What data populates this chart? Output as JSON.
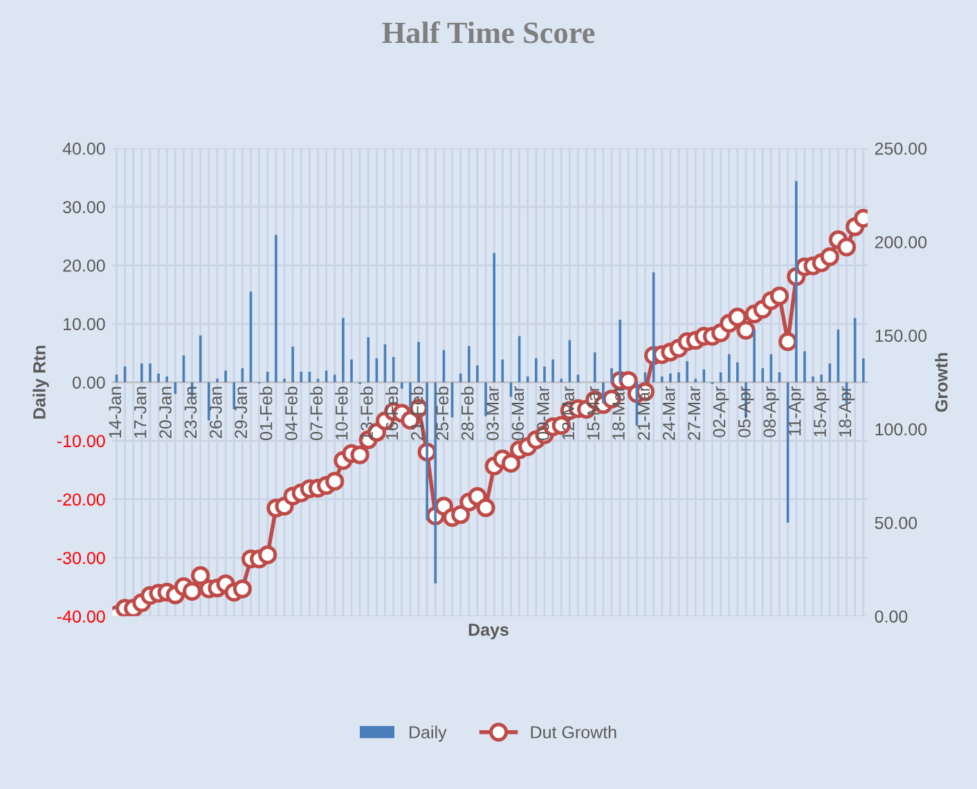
{
  "chart_data": {
    "type": "bar",
    "title": "Half Time Score",
    "xlabel": "Days",
    "ylabel": "Daily Rtn",
    "y2label": "Growth",
    "categories": [
      "14-Jan",
      null,
      null,
      "17-Jan",
      null,
      null,
      "20-Jan",
      null,
      null,
      "23-Jan",
      null,
      null,
      "26-Jan",
      null,
      null,
      "29-Jan",
      null,
      null,
      "01-Feb",
      null,
      null,
      "04-Feb",
      null,
      null,
      "07-Feb",
      null,
      null,
      "10-Feb",
      null,
      null,
      "13-Feb",
      null,
      null,
      "16-Feb",
      null,
      null,
      "21-Feb",
      null,
      null,
      "25-Feb",
      null,
      null,
      "28-Feb",
      null,
      null,
      "03-Mar",
      null,
      null,
      "06-Mar",
      null,
      null,
      "09-Mar",
      null,
      null,
      "12-Mar",
      null,
      null,
      "15-Mar",
      null,
      null,
      "18-Mar",
      null,
      null,
      "21-Mar",
      null,
      null,
      "24-Mar",
      null,
      null,
      "27-Mar",
      null,
      null,
      "02-Apr",
      null,
      null,
      "05-Apr",
      null,
      null,
      "08-Apr",
      null,
      null,
      "11-Apr",
      null,
      null,
      "15-Apr",
      null,
      null,
      "18-Apr",
      null,
      null
    ],
    "series": [
      {
        "name": "Daily",
        "color": "#4a7ebb",
        "values": [
          1.3,
          2.7,
          0,
          3.2,
          3.2,
          1.5,
          1.0,
          -2.0,
          4.6,
          -2.4,
          8.0,
          -6.5,
          0.6,
          2.0,
          -4.6,
          2.4,
          15.5,
          -0.2,
          1.8,
          25.2,
          0.6,
          6.1,
          1.8,
          1.8,
          0.6,
          2.0,
          1.3,
          11.0,
          3.9,
          -0.3,
          7.7,
          4.1,
          6.5,
          4.3,
          -1.1,
          -4.2,
          6.9,
          -23.6,
          -34.4,
          5.5,
          -6.0,
          1.5,
          6.2,
          2.9,
          -5.8,
          22.1,
          3.9,
          -2.5,
          7.9,
          1.0,
          4.1,
          2.7,
          3.9,
          0.6,
          7.2,
          1.3,
          0,
          5.1,
          -3.6,
          2.4,
          10.7,
          0,
          -7.4,
          1.7,
          18.8,
          1.0,
          1.5,
          1.7,
          3.6,
          0.6,
          2.2,
          -0.3,
          1.7,
          4.8,
          3.4,
          -6.0,
          9.0,
          2.4,
          4.8,
          1.7,
          -24.0,
          34.4,
          5.3,
          1.0,
          1.3,
          3.2,
          9.0,
          -3.5,
          11.0,
          4.1
        ]
      },
      {
        "name": "Dut Growth",
        "type": "line",
        "axis": "y2",
        "color": "#be4b48",
        "marker": "circle",
        "values": [
          0.7,
          4.2,
          4.2,
          7.2,
          11.1,
          12.3,
          12.8,
          11.4,
          15.8,
          13.3,
          21.7,
          14.6,
          15.1,
          17.3,
          12.8,
          14.6,
          30.6,
          30.6,
          32.8,
          57.8,
          58.8,
          64.2,
          65.9,
          68.1,
          68.4,
          69.9,
          72.1,
          83.2,
          86.9,
          86.2,
          94.3,
          98.3,
          104.4,
          109.4,
          108.4,
          104.7,
          111.1,
          87.7,
          53.6,
          58.8,
          52.8,
          54.3,
          61.0,
          64.0,
          58.0,
          80.2,
          84.0,
          81.7,
          88.9,
          90.6,
          94.3,
          97.0,
          101.2,
          102.0,
          109.9,
          110.9,
          110.6,
          115.6,
          113.1,
          116.0,
          125.9,
          125.9,
          119.0,
          120.0,
          139.3,
          139.8,
          141.2,
          143.2,
          146.7,
          147.4,
          149.6,
          149.6,
          151.4,
          156.5,
          159.8,
          152.8,
          161.5,
          164.0,
          168.6,
          171.1,
          146.7,
          181.5,
          186.7,
          187.2,
          188.9,
          192.1,
          201.2,
          197.3,
          208.1,
          212.6
        ]
      }
    ],
    "ylim": [
      -40,
      40
    ],
    "yticks": [
      {
        "value": -40,
        "label": "-40.00"
      },
      {
        "value": -30,
        "label": "-30.00"
      },
      {
        "value": -20,
        "label": "-20.00"
      },
      {
        "value": -10,
        "label": "-10.00"
      },
      {
        "value": 0,
        "label": "0.00"
      },
      {
        "value": 10,
        "label": "10.00"
      },
      {
        "value": 20,
        "label": "20.00"
      },
      {
        "value": 30,
        "label": "30.00"
      },
      {
        "value": 40,
        "label": "40.00"
      }
    ],
    "y2lim": [
      0,
      250
    ],
    "y2ticks": [
      {
        "value": 0,
        "label": "0.00"
      },
      {
        "value": 50,
        "label": "50.00"
      },
      {
        "value": 100,
        "label": "100.00"
      },
      {
        "value": 150,
        "label": "150.00"
      },
      {
        "value": 200,
        "label": "200.00"
      },
      {
        "value": 250,
        "label": "250.00"
      }
    ],
    "grid": true,
    "legend": "bottom"
  }
}
